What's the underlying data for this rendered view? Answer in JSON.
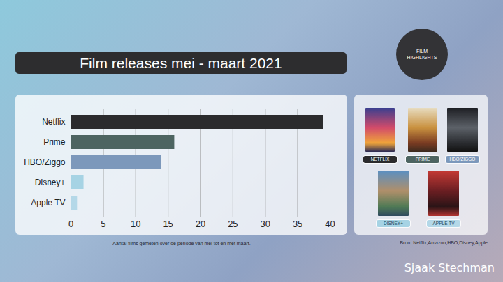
{
  "chart_data": {
    "type": "bar",
    "orientation": "horizontal",
    "title": "Film releases mei - maart 2021",
    "categories": [
      "Netflix",
      "Prime",
      "HBO/Ziggo",
      "Disney+",
      "Apple TV"
    ],
    "values": [
      39,
      16,
      14,
      2,
      1
    ],
    "colors": [
      "#2b2b2d",
      "#4d6461",
      "#7c98bb",
      "#a6d3e4",
      "#b4d8e8"
    ],
    "xlim": [
      0,
      40
    ],
    "xticks": [
      0,
      5,
      10,
      15,
      20,
      25,
      30,
      35,
      40
    ],
    "grid": true,
    "caption": "Aantal films gemeten over de periode van mei tot en met maart.",
    "source": "Bron: Netflix,Amazon,HBO,Disney,Apple"
  },
  "highlights": {
    "title": "FILM HIGHLIGHTS",
    "labels": [
      "NETFLIX",
      "PRIME",
      "HBO/ZIGGO",
      "DISNEY+",
      "APPLE TV"
    ]
  },
  "author": "Sjaak Stechman"
}
